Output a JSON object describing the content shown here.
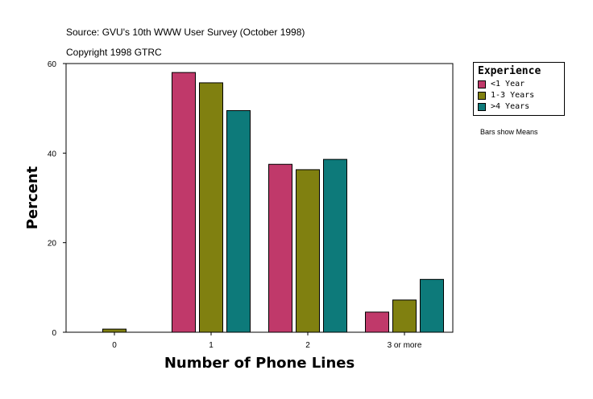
{
  "source_line": "Source: GVU's 10th WWW User Survey (October 1998)",
  "copyright_line": "Copyright 1998 GTRC",
  "note": "Bars show Means",
  "legend": {
    "title": "Experience",
    "items": [
      {
        "label": "<1 Year",
        "color": "#c0396a"
      },
      {
        "label": "1-3 Years",
        "color": "#808010"
      },
      {
        "label": ">4 Years",
        "color": "#0d7a7a"
      }
    ]
  },
  "chart_data": {
    "type": "bar",
    "categories": [
      "0",
      "1",
      "2",
      "3 or more"
    ],
    "series": [
      {
        "name": "<1 Year",
        "color": "#c0396a",
        "values": [
          0,
          58,
          37.5,
          4.5
        ]
      },
      {
        "name": "1-3 Years",
        "color": "#808010",
        "values": [
          0.7,
          55.7,
          36.3,
          7.2
        ]
      },
      {
        "name": ">4 Years",
        "color": "#0d7a7a",
        "values": [
          0,
          49.5,
          38.6,
          11.8
        ]
      }
    ],
    "xlabel": "Number of Phone Lines",
    "ylabel": "Percent",
    "ylim": [
      0,
      60
    ],
    "yticks": [
      0,
      20,
      40,
      60
    ],
    "grid": false,
    "legend_position": "top-right"
  }
}
